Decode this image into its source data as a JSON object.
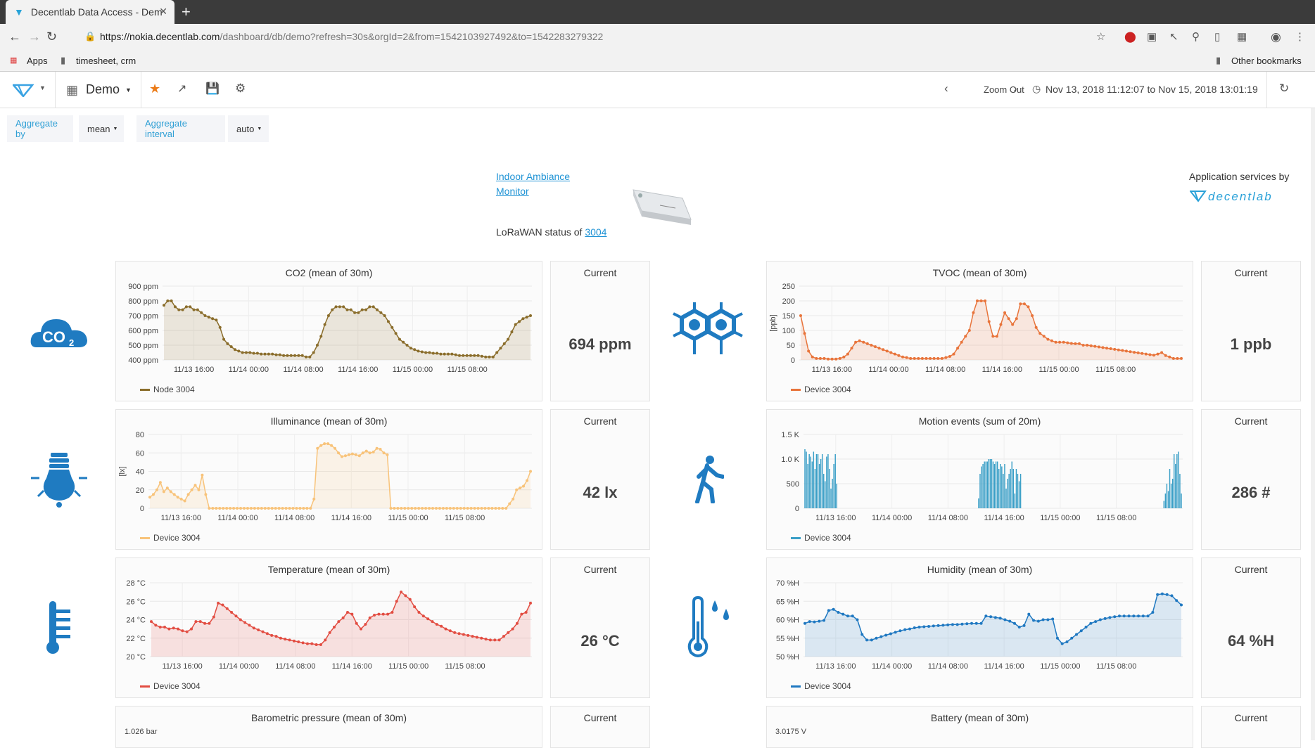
{
  "browser": {
    "tab_title": "Decentlab Data Access - Dem",
    "url_host": "https://nokia.decentlab.com",
    "url_path": "/dashboard/db/demo?refresh=30s&orgId=2&from=1542103927492&to=1542283279322",
    "bookmarks": {
      "apps": "Apps",
      "folder1": "timesheet, crm",
      "other": "Other bookmarks"
    }
  },
  "navbar": {
    "dashboard_name": "Demo",
    "zoom_out": "Zoom Out",
    "time_range": "Nov 13, 2018 11:12:07 to Nov 15, 2018 13:01:19"
  },
  "variables": {
    "aggregate_by_label": "Aggregate by",
    "aggregate_by_value": "mean",
    "aggregate_interval_label": "Aggregate interval",
    "aggregate_interval_value": "auto"
  },
  "header": {
    "monitor_link_line1": "Indoor Ambiance",
    "monitor_link_line2": "Monitor",
    "status_prefix": "LoRaWAN status of",
    "device_link": "3004",
    "services_label": "Application services by",
    "brand": "decentlab"
  },
  "colors": {
    "accent": "#1f7bc1",
    "icon_blue": "#1f7bc1",
    "link": "#1f93d5"
  },
  "panels": {
    "current_label": "Current",
    "co2": {
      "title": "CO2 (mean of 30m)",
      "current": "694 ppm",
      "legend": "Node 3004",
      "icon": "co2-cloud-icon"
    },
    "tvoc": {
      "title": "TVOC (mean of 30m)",
      "current": "1 ppb",
      "legend": "Device 3004",
      "ylabel": "[ppb]",
      "icon": "molecule-icon"
    },
    "illum": {
      "title": "Illuminance (mean of 30m)",
      "current": "42 lx",
      "legend": "Device 3004",
      "ylabel": "[lx]",
      "icon": "light-bulb-icon"
    },
    "motion": {
      "title": "Motion events (sum of 20m)",
      "current": "286 #",
      "legend": "Device 3004",
      "icon": "walking-person-icon"
    },
    "temp": {
      "title": "Temperature (mean of 30m)",
      "current": "26 °C",
      "legend": "Device 3004",
      "icon": "thermometer-icon"
    },
    "hum": {
      "title": "Humidity (mean of 30m)",
      "current": "64 %H",
      "legend": "Device 3004",
      "icon": "thermometer-drops-icon"
    },
    "baro": {
      "title": "Barometric pressure (mean of 30m)",
      "ytick_top": "1.026 bar"
    },
    "battery": {
      "title": "Battery (mean of 30m)",
      "ytick_top": "3.0175 V"
    }
  },
  "chart_data": [
    {
      "id": "co2",
      "type": "line",
      "title": "CO2 (mean of 30m)",
      "color": "#8a6d2b",
      "ylim": [
        400,
        900
      ],
      "yticks": [
        "900 ppm",
        "800 ppm",
        "700 ppm",
        "600 ppm",
        "500 ppm",
        "400 ppm"
      ],
      "xticks": [
        "11/13 16:00",
        "11/14 00:00",
        "11/14 08:00",
        "11/14 16:00",
        "11/15 00:00",
        "11/15 08:00"
      ],
      "series": [
        {
          "name": "Node 3004",
          "values": [
            770,
            800,
            800,
            760,
            740,
            740,
            760,
            760,
            740,
            740,
            720,
            700,
            690,
            680,
            670,
            620,
            540,
            510,
            490,
            470,
            460,
            450,
            450,
            450,
            445,
            445,
            440,
            440,
            440,
            440,
            435,
            435,
            430,
            430,
            430,
            430,
            430,
            430,
            420,
            420,
            450,
            500,
            560,
            640,
            700,
            740,
            760,
            760,
            760,
            740,
            740,
            720,
            720,
            740,
            740,
            760,
            760,
            740,
            720,
            700,
            660,
            620,
            580,
            540,
            520,
            500,
            480,
            470,
            460,
            455,
            450,
            450,
            445,
            445,
            440,
            440,
            440,
            440,
            435,
            430,
            430,
            430,
            430,
            430,
            430,
            425,
            420,
            420,
            420,
            450,
            480,
            510,
            540,
            590,
            640,
            660,
            680,
            690,
            700
          ]
        }
      ]
    },
    {
      "id": "tvoc",
      "type": "line",
      "title": "TVOC (mean of 30m)",
      "color": "#e8743b",
      "ylabel": "[ppb]",
      "ylim": [
        0,
        250
      ],
      "yticks": [
        "250",
        "200",
        "150",
        "100",
        "50",
        "0"
      ],
      "xticks": [
        "11/13 16:00",
        "11/14 00:00",
        "11/14 08:00",
        "11/14 16:00",
        "11/15 00:00",
        "11/15 08:00"
      ],
      "series": [
        {
          "name": "Device 3004",
          "values": [
            150,
            90,
            30,
            10,
            5,
            5,
            5,
            3,
            3,
            3,
            5,
            10,
            20,
            40,
            60,
            65,
            60,
            55,
            50,
            45,
            40,
            35,
            30,
            25,
            20,
            15,
            10,
            8,
            5,
            5,
            5,
            5,
            5,
            5,
            5,
            5,
            5,
            8,
            12,
            20,
            40,
            60,
            80,
            100,
            160,
            200,
            200,
            200,
            130,
            80,
            80,
            120,
            160,
            140,
            120,
            140,
            190,
            190,
            180,
            150,
            110,
            90,
            80,
            70,
            65,
            60,
            60,
            60,
            58,
            56,
            55,
            55,
            50,
            50,
            48,
            46,
            44,
            42,
            40,
            38,
            36,
            34,
            32,
            30,
            28,
            26,
            24,
            22,
            20,
            18,
            16,
            20,
            25,
            15,
            10,
            5,
            5,
            5
          ]
        }
      ]
    },
    {
      "id": "illum",
      "type": "line",
      "title": "Illuminance (mean of 30m)",
      "color": "#f8c37a",
      "ylabel": "[lx]",
      "ylim": [
        0,
        80
      ],
      "yticks": [
        "80",
        "60",
        "40",
        "20",
        "0"
      ],
      "xticks": [
        "11/13 16:00",
        "11/14 00:00",
        "11/14 08:00",
        "11/14 16:00",
        "11/15 00:00",
        "11/15 08:00"
      ],
      "series": [
        {
          "name": "Device 3004",
          "values": [
            12,
            15,
            20,
            28,
            18,
            22,
            18,
            15,
            12,
            10,
            8,
            15,
            20,
            25,
            20,
            36,
            15,
            0,
            0,
            0,
            0,
            0,
            0,
            0,
            0,
            0,
            0,
            0,
            0,
            0,
            0,
            0,
            0,
            0,
            0,
            0,
            0,
            0,
            0,
            0,
            0,
            0,
            0,
            0,
            0,
            0,
            0,
            10,
            65,
            68,
            70,
            70,
            68,
            65,
            60,
            56,
            57,
            58,
            59,
            58,
            57,
            60,
            62,
            60,
            61,
            65,
            64,
            60,
            58,
            0,
            0,
            0,
            0,
            0,
            0,
            0,
            0,
            0,
            0,
            0,
            0,
            0,
            0,
            0,
            0,
            0,
            0,
            0,
            0,
            0,
            0,
            0,
            0,
            0,
            0,
            0,
            0,
            0,
            0,
            0,
            0,
            0,
            0,
            5,
            10,
            20,
            22,
            24,
            30,
            40
          ]
        }
      ]
    },
    {
      "id": "motion",
      "type": "bar",
      "title": "Motion events (sum of 20m)",
      "color": "#3a9fc7",
      "ylim": [
        0,
        1500
      ],
      "yticks": [
        "1.5 K",
        "1.0 K",
        "500",
        "0"
      ],
      "xticks": [
        "11/13 16:00",
        "11/14 00:00",
        "11/14 08:00",
        "11/14 16:00",
        "11/15 00:00",
        "11/15 08:00"
      ],
      "series": [
        {
          "name": "Device 3004",
          "values": [
            1200,
            1150,
            900,
            1100,
            1050,
            950,
            1150,
            800,
            1100,
            1100,
            900,
            1000,
            1100,
            700,
            550,
            1050,
            1100,
            800,
            400,
            600,
            900,
            1100,
            500,
            0,
            0,
            0,
            0,
            0,
            0,
            0,
            0,
            0,
            0,
            0,
            0,
            0,
            0,
            0,
            0,
            0,
            0,
            0,
            0,
            0,
            0,
            0,
            0,
            0,
            0,
            0,
            0,
            0,
            0,
            0,
            0,
            0,
            0,
            0,
            0,
            0,
            0,
            0,
            0,
            0,
            0,
            0,
            0,
            0,
            0,
            0,
            0,
            0,
            0,
            0,
            0,
            0,
            0,
            0,
            0,
            0,
            0,
            0,
            0,
            0,
            0,
            0,
            0,
            0,
            0,
            0,
            0,
            0,
            0,
            0,
            0,
            0,
            0,
            0,
            0,
            0,
            0,
            0,
            0,
            0,
            0,
            0,
            0,
            0,
            0,
            0,
            0,
            0,
            0,
            0,
            0,
            0,
            0,
            0,
            0,
            0,
            200,
            700,
            850,
            900,
            950,
            950,
            950,
            1000,
            1000,
            1000,
            950,
            900,
            950,
            950,
            800,
            900,
            850,
            700,
            900,
            400,
            600,
            700,
            800,
            950,
            800,
            300,
            800,
            700,
            550,
            700,
            0,
            0,
            0,
            0,
            0,
            0,
            0,
            0,
            0,
            0,
            0,
            0,
            0,
            0,
            0,
            0,
            0,
            0,
            0,
            0,
            0,
            0,
            0,
            0,
            0,
            0,
            0,
            0,
            0,
            0,
            0,
            0,
            0,
            0,
            0,
            0,
            0,
            0,
            0,
            0,
            0,
            0,
            0,
            0,
            0,
            0,
            0,
            0,
            0,
            0,
            0,
            0,
            0,
            0,
            0,
            0,
            0,
            0,
            0,
            0,
            0,
            0,
            0,
            0,
            0,
            0,
            0,
            0,
            0,
            0,
            0,
            0,
            0,
            0,
            0,
            0,
            0,
            0,
            0,
            0,
            0,
            0,
            0,
            0,
            0,
            0,
            0,
            0,
            0,
            0,
            0,
            0,
            0,
            0,
            0,
            0,
            0,
            0,
            150,
            300,
            500,
            350,
            800,
            500,
            600,
            1100,
            900,
            1100,
            1150,
            700,
            300
          ]
        }
      ]
    },
    {
      "id": "temp",
      "type": "line",
      "title": "Temperature (mean of 30m)",
      "color": "#e24d42",
      "ylim": [
        20,
        28
      ],
      "yticks": [
        "28 °C",
        "26 °C",
        "24 °C",
        "22 °C",
        "20 °C"
      ],
      "xticks": [
        "11/13 16:00",
        "11/14 00:00",
        "11/14 08:00",
        "11/14 16:00",
        "11/15 00:00",
        "11/15 08:00"
      ],
      "series": [
        {
          "name": "Device 3004",
          "values": [
            23.8,
            23.4,
            23.2,
            23.2,
            23.0,
            23.1,
            23.0,
            22.8,
            22.7,
            23.0,
            23.8,
            23.8,
            23.6,
            23.6,
            24.3,
            25.8,
            25.6,
            25.2,
            24.8,
            24.4,
            24.0,
            23.7,
            23.4,
            23.1,
            22.9,
            22.7,
            22.5,
            22.3,
            22.2,
            22.0,
            21.9,
            21.8,
            21.7,
            21.6,
            21.5,
            21.4,
            21.4,
            21.3,
            21.3,
            21.8,
            22.6,
            23.2,
            23.8,
            24.2,
            24.8,
            24.6,
            23.6,
            23.0,
            23.5,
            24.2,
            24.5,
            24.6,
            24.6,
            24.6,
            24.8,
            26.0,
            27.0,
            26.6,
            26.2,
            25.4,
            24.8,
            24.4,
            24.1,
            23.8,
            23.5,
            23.3,
            23.0,
            22.8,
            22.6,
            22.5,
            22.4,
            22.3,
            22.2,
            22.1,
            22.0,
            21.9,
            21.8,
            21.8,
            21.8,
            22.2,
            22.6,
            23.0,
            23.6,
            24.6,
            24.8,
            25.8
          ]
        }
      ]
    },
    {
      "id": "hum",
      "type": "line",
      "title": "Humidity (mean of 30m)",
      "color": "#1f78c1",
      "ylim": [
        50,
        70
      ],
      "yticks": [
        "70 %H",
        "65 %H",
        "60 %H",
        "55 %H",
        "50 %H"
      ],
      "xticks": [
        "11/13 16:00",
        "11/14 00:00",
        "11/14 08:00",
        "11/14 16:00",
        "11/15 00:00",
        "11/15 08:00"
      ],
      "series": [
        {
          "name": "Device 3004",
          "values": [
            59,
            59.5,
            59.4,
            59.6,
            59.8,
            62.5,
            62.8,
            62,
            61.5,
            61,
            61,
            60,
            56,
            54.5,
            54.5,
            55,
            55.4,
            55.8,
            56.2,
            56.6,
            57,
            57.3,
            57.5,
            57.8,
            58,
            58.1,
            58.2,
            58.3,
            58.4,
            58.5,
            58.6,
            58.7,
            58.7,
            58.8,
            58.9,
            59,
            59,
            59,
            61,
            60.8,
            60.6,
            60.4,
            60,
            59.6,
            59,
            58,
            58.4,
            61.5,
            59.8,
            59.6,
            60,
            60,
            60.2,
            55,
            53.5,
            54,
            55,
            56,
            57,
            58,
            59,
            59.5,
            60,
            60.3,
            60.6,
            60.8,
            61,
            61,
            61,
            61,
            61,
            61,
            61,
            62,
            66.8,
            67,
            66.8,
            66.5,
            65.2,
            64
          ]
        }
      ]
    }
  ]
}
